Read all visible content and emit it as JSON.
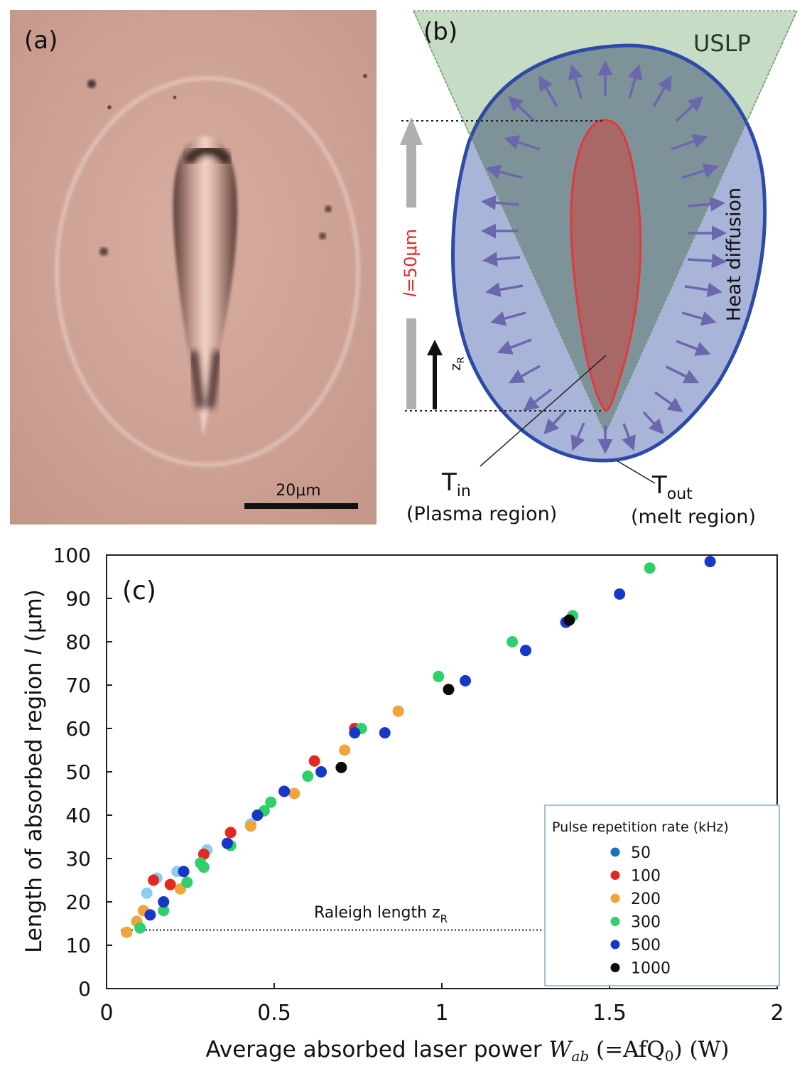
{
  "panel_a": {
    "label": "(a)",
    "scale_bar_label": "20μm"
  },
  "panel_b": {
    "label": "(b)",
    "beam_label": "USLP",
    "heat_label": "Heat diffusion",
    "length_label": "l=50μm",
    "length_label_italic": "l",
    "length_label_rest": "=50μm",
    "zr_label_main": "z",
    "zr_label_sub": "R",
    "tin_main": "T",
    "tin_sub": "in",
    "tin_region": "(Plasma region)",
    "tout_main": "T",
    "tout_sub": "out",
    "tout_region": "(melt region)",
    "colors": {
      "beam": "#c6dcc4",
      "melt": "#a9b5d8",
      "outline": "#2d4aa8",
      "plasma": "#a86868",
      "plasma_outline": "#e03a3a",
      "arrow": "#6a67ad"
    }
  },
  "chart_data": {
    "type": "scatter",
    "panel_label": "(c)",
    "xlabel_pre": "Average absorbed laser power ",
    "xlabel_var": "W",
    "xlabel_var_sub": "ab",
    "xlabel_post_a": " (=AfQ",
    "xlabel_post_sub": "0",
    "xlabel_post_b": ") (W)",
    "ylabel_pre": "Length of absorbed region ",
    "ylabel_var": "l",
    "ylabel_post": " (μm)",
    "xlim": [
      0,
      2
    ],
    "ylim": [
      0,
      100
    ],
    "x_ticks": [
      0,
      0.5,
      1,
      1.5,
      2
    ],
    "x_tick_labels": [
      "0",
      "0.5",
      "1",
      "1.5",
      "2"
    ],
    "y_ticks": [
      0,
      10,
      20,
      30,
      40,
      50,
      60,
      70,
      80,
      90,
      100
    ],
    "y_tick_labels": [
      "0",
      "10",
      "20",
      "30",
      "40",
      "50",
      "60",
      "70",
      "80",
      "90",
      "100"
    ],
    "reference_line": {
      "label_main": "Raleigh length z",
      "label_sub": "R",
      "y": 13.5,
      "x_end": 1.3
    },
    "legend": {
      "title": "Pulse repetition rate (kHz)",
      "placement": "bottom-right"
    },
    "series": [
      {
        "name": "50",
        "color": "#8fcdf0",
        "legend_color": "#1f6fc0",
        "points": [
          [
            0.12,
            22
          ],
          [
            0.15,
            25.5
          ],
          [
            0.21,
            27
          ],
          [
            0.3,
            32
          ],
          [
            0.43,
            38
          ]
        ]
      },
      {
        "name": "100",
        "color": "#e2291f",
        "points": [
          [
            0.14,
            25
          ],
          [
            0.19,
            24
          ],
          [
            0.29,
            31
          ],
          [
            0.37,
            36
          ],
          [
            0.53,
            45.5
          ],
          [
            0.62,
            52.5
          ],
          [
            0.74,
            60
          ]
        ]
      },
      {
        "name": "200",
        "color": "#f2a33a",
        "points": [
          [
            0.06,
            13
          ],
          [
            0.09,
            15.5
          ],
          [
            0.11,
            18
          ],
          [
            0.22,
            23
          ],
          [
            0.43,
            37.5
          ],
          [
            0.56,
            45
          ],
          [
            0.71,
            55
          ],
          [
            0.87,
            64
          ]
        ]
      },
      {
        "name": "300",
        "color": "#2fcf6a",
        "points": [
          [
            0.1,
            14
          ],
          [
            0.17,
            18
          ],
          [
            0.24,
            24.5
          ],
          [
            0.28,
            29
          ],
          [
            0.29,
            28
          ],
          [
            0.37,
            33
          ],
          [
            0.47,
            41
          ],
          [
            0.49,
            43
          ],
          [
            0.6,
            49
          ],
          [
            0.76,
            60
          ],
          [
            0.99,
            72
          ],
          [
            1.21,
            80
          ],
          [
            1.39,
            86
          ],
          [
            1.62,
            97
          ]
        ]
      },
      {
        "name": "500",
        "color": "#1738c6",
        "points": [
          [
            0.13,
            17
          ],
          [
            0.17,
            20
          ],
          [
            0.23,
            27
          ],
          [
            0.36,
            33.5
          ],
          [
            0.45,
            40
          ],
          [
            0.53,
            45.5
          ],
          [
            0.64,
            50
          ],
          [
            0.74,
            59
          ],
          [
            0.83,
            59
          ],
          [
            1.07,
            71
          ],
          [
            1.25,
            78
          ],
          [
            1.37,
            84.5
          ],
          [
            1.53,
            91
          ],
          [
            1.8,
            98.5
          ]
        ]
      },
      {
        "name": "1000",
        "color": "#0a0a0a",
        "points": [
          [
            0.7,
            51
          ],
          [
            1.02,
            69
          ],
          [
            1.38,
            85
          ]
        ]
      }
    ]
  }
}
